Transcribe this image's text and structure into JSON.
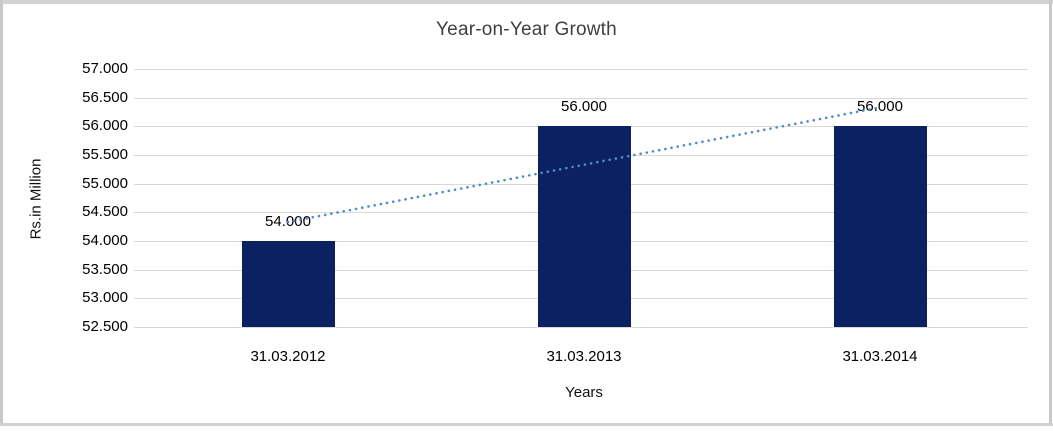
{
  "chart_data": {
    "type": "bar",
    "title": "Year-on-Year Growth",
    "xlabel": "Years",
    "ylabel": "Rs.in Million",
    "categories": [
      "31.03.2012",
      "31.03.2013",
      "31.03.2014"
    ],
    "values": [
      54.0,
      56.0,
      56.0
    ],
    "value_labels": [
      "54.000",
      "56.000",
      "56.000"
    ],
    "ylim": [
      52.5,
      57.0
    ],
    "ytick_step": 0.5,
    "ytick_labels": [
      "57.000",
      "56.500",
      "56.000",
      "55.500",
      "55.000",
      "54.500",
      "54.000",
      "53.500",
      "53.000",
      "52.500"
    ],
    "grid": true,
    "legend": "none",
    "bar_color": "#0b2161",
    "gridline_color": "#d9d9d9",
    "trendline": {
      "style": "dotted",
      "color": "#4f8bcc",
      "start_value": 54.33,
      "end_value": 56.33
    }
  }
}
